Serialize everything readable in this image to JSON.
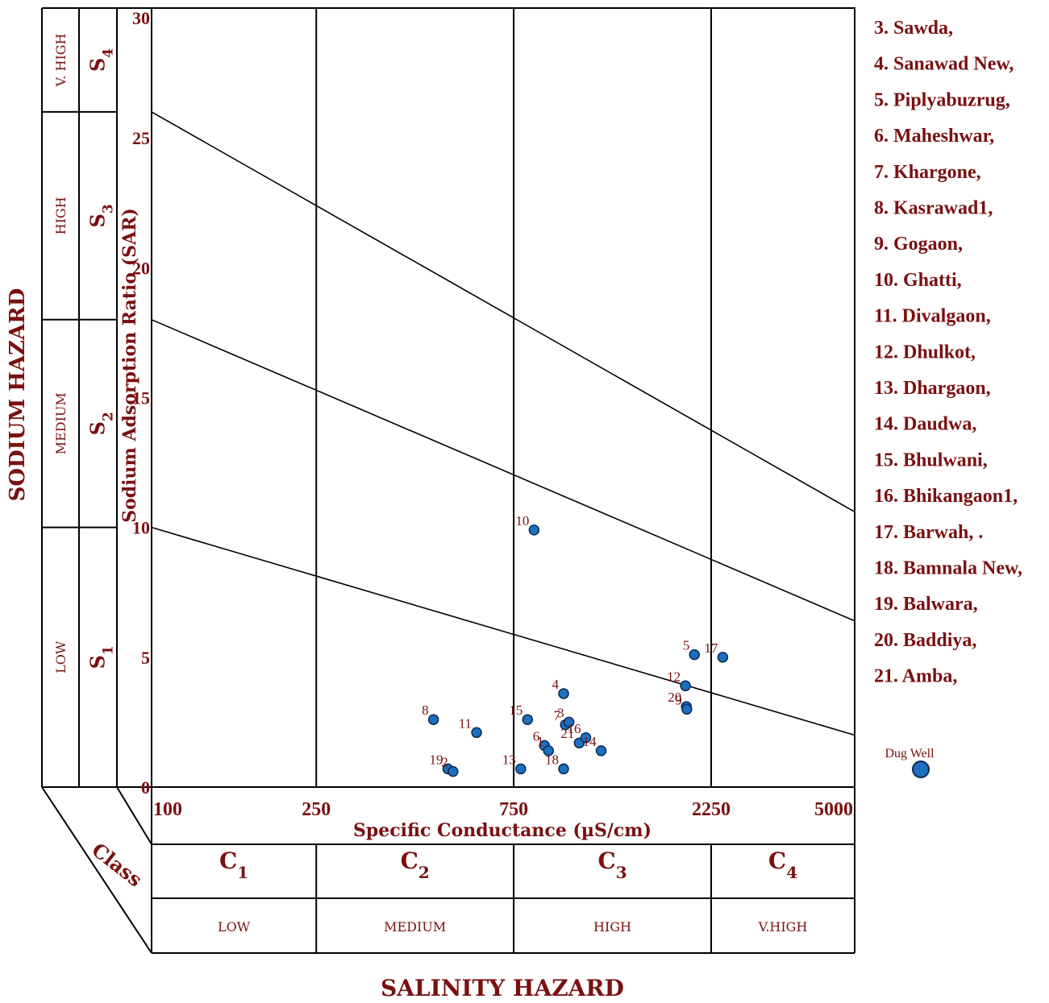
{
  "colors": {
    "text": "#7a1010",
    "line": "#000000",
    "point_fill": "#1f6fbf",
    "point_stroke": "#0a2a55"
  },
  "chart_data": {
    "type": "scatter",
    "xlabel": "Specific Conductance (µS/cm)",
    "ylabel": "Sodium Adsorption Ratio (SAR)",
    "left_title": "SODIUM HAZARD",
    "bottom_title": "SALINITY HAZARD",
    "class_label": "Class",
    "x_scale": "log",
    "xlim": [
      100,
      5000
    ],
    "ylim": [
      0,
      30
    ],
    "x_ticks": [
      100,
      250,
      750,
      2250,
      5000
    ],
    "x_tick_labels": [
      "100",
      "250",
      "750",
      "2250",
      "5000"
    ],
    "y_ticks": [
      0,
      5,
      10,
      15,
      20,
      25,
      30
    ],
    "y_tick_labels": [
      "0",
      "5",
      "10",
      "15",
      "20",
      "25",
      "30"
    ],
    "sodium_classes": [
      {
        "code": "S",
        "sub": "1",
        "label": "LOW",
        "range": [
          0,
          10
        ]
      },
      {
        "code": "S",
        "sub": "2",
        "label": "MEDIUM",
        "range": [
          10,
          18
        ]
      },
      {
        "code": "S",
        "sub": "3",
        "label": "HIGH",
        "range": [
          18,
          26
        ]
      },
      {
        "code": "S",
        "sub": "4",
        "label": "V. HIGH",
        "range": [
          26,
          30
        ]
      }
    ],
    "salinity_classes": [
      {
        "code": "C",
        "sub": "1",
        "label": "LOW",
        "range": [
          100,
          250
        ]
      },
      {
        "code": "C",
        "sub": "2",
        "label": "MEDIUM",
        "range": [
          250,
          750
        ]
      },
      {
        "code": "C",
        "sub": "3",
        "label": "HIGH",
        "range": [
          750,
          2250
        ]
      },
      {
        "code": "C",
        "sub": "4",
        "label": "V.HIGH",
        "range": [
          2250,
          5000
        ]
      }
    ],
    "boundary_lines": [
      {
        "x": [
          100,
          5000
        ],
        "y": [
          10,
          2
        ]
      },
      {
        "x": [
          100,
          5000
        ],
        "y": [
          18,
          6.4
        ]
      },
      {
        "x": [
          100,
          5000
        ],
        "y": [
          26,
          10.6
        ]
      }
    ],
    "series": [
      {
        "name": "Dug Well",
        "points": [
          {
            "label": "8",
            "x": 480,
            "y": 2.6
          },
          {
            "label": "19",
            "x": 520,
            "y": 0.7
          },
          {
            "label": "2",
            "x": 535,
            "y": 0.6
          },
          {
            "label": "11",
            "x": 610,
            "y": 2.1
          },
          {
            "label": "15",
            "x": 810,
            "y": 2.6
          },
          {
            "label": "13",
            "x": 780,
            "y": 0.7
          },
          {
            "label": "10",
            "x": 840,
            "y": 9.9
          },
          {
            "label": "6",
            "x": 890,
            "y": 1.6
          },
          {
            "label": "1",
            "x": 910,
            "y": 1.4
          },
          {
            "label": "4",
            "x": 990,
            "y": 3.6
          },
          {
            "label": "18",
            "x": 990,
            "y": 0.7
          },
          {
            "label": "7",
            "x": 1000,
            "y": 2.4
          },
          {
            "label": "3",
            "x": 1020,
            "y": 2.5
          },
          {
            "label": "21",
            "x": 1080,
            "y": 1.7
          },
          {
            "label": "16",
            "x": 1120,
            "y": 1.9
          },
          {
            "label": "14",
            "x": 1220,
            "y": 1.4
          },
          {
            "label": "12",
            "x": 1950,
            "y": 3.9
          },
          {
            "label": "20",
            "x": 1960,
            "y": 3.1
          },
          {
            "label": "9",
            "x": 1965,
            "y": 3.0
          },
          {
            "label": "5",
            "x": 2050,
            "y": 5.1
          },
          {
            "label": "17",
            "x": 2400,
            "y": 5.0
          }
        ]
      }
    ],
    "legend": {
      "locations": [
        "3. Sawda,",
        "4. Sanawad New,",
        "5. Piplyabuzrug,",
        "6. Maheshwar,",
        "7. Khargone,",
        "8. Kasrawad1,",
        "9. Gogaon,",
        "10. Ghatti,",
        "11. Divalgaon,",
        "12. Dhulkot,",
        "13. Dhargaon,",
        "14. Daudwa,",
        "15. Bhulwani,",
        "16. Bhikangaon1,",
        "17. Barwah, .",
        "18. Bamnala New,",
        "19. Balwara,",
        "20. Baddiya,",
        "21. Amba,"
      ],
      "marker_label": "Dug Well"
    }
  }
}
